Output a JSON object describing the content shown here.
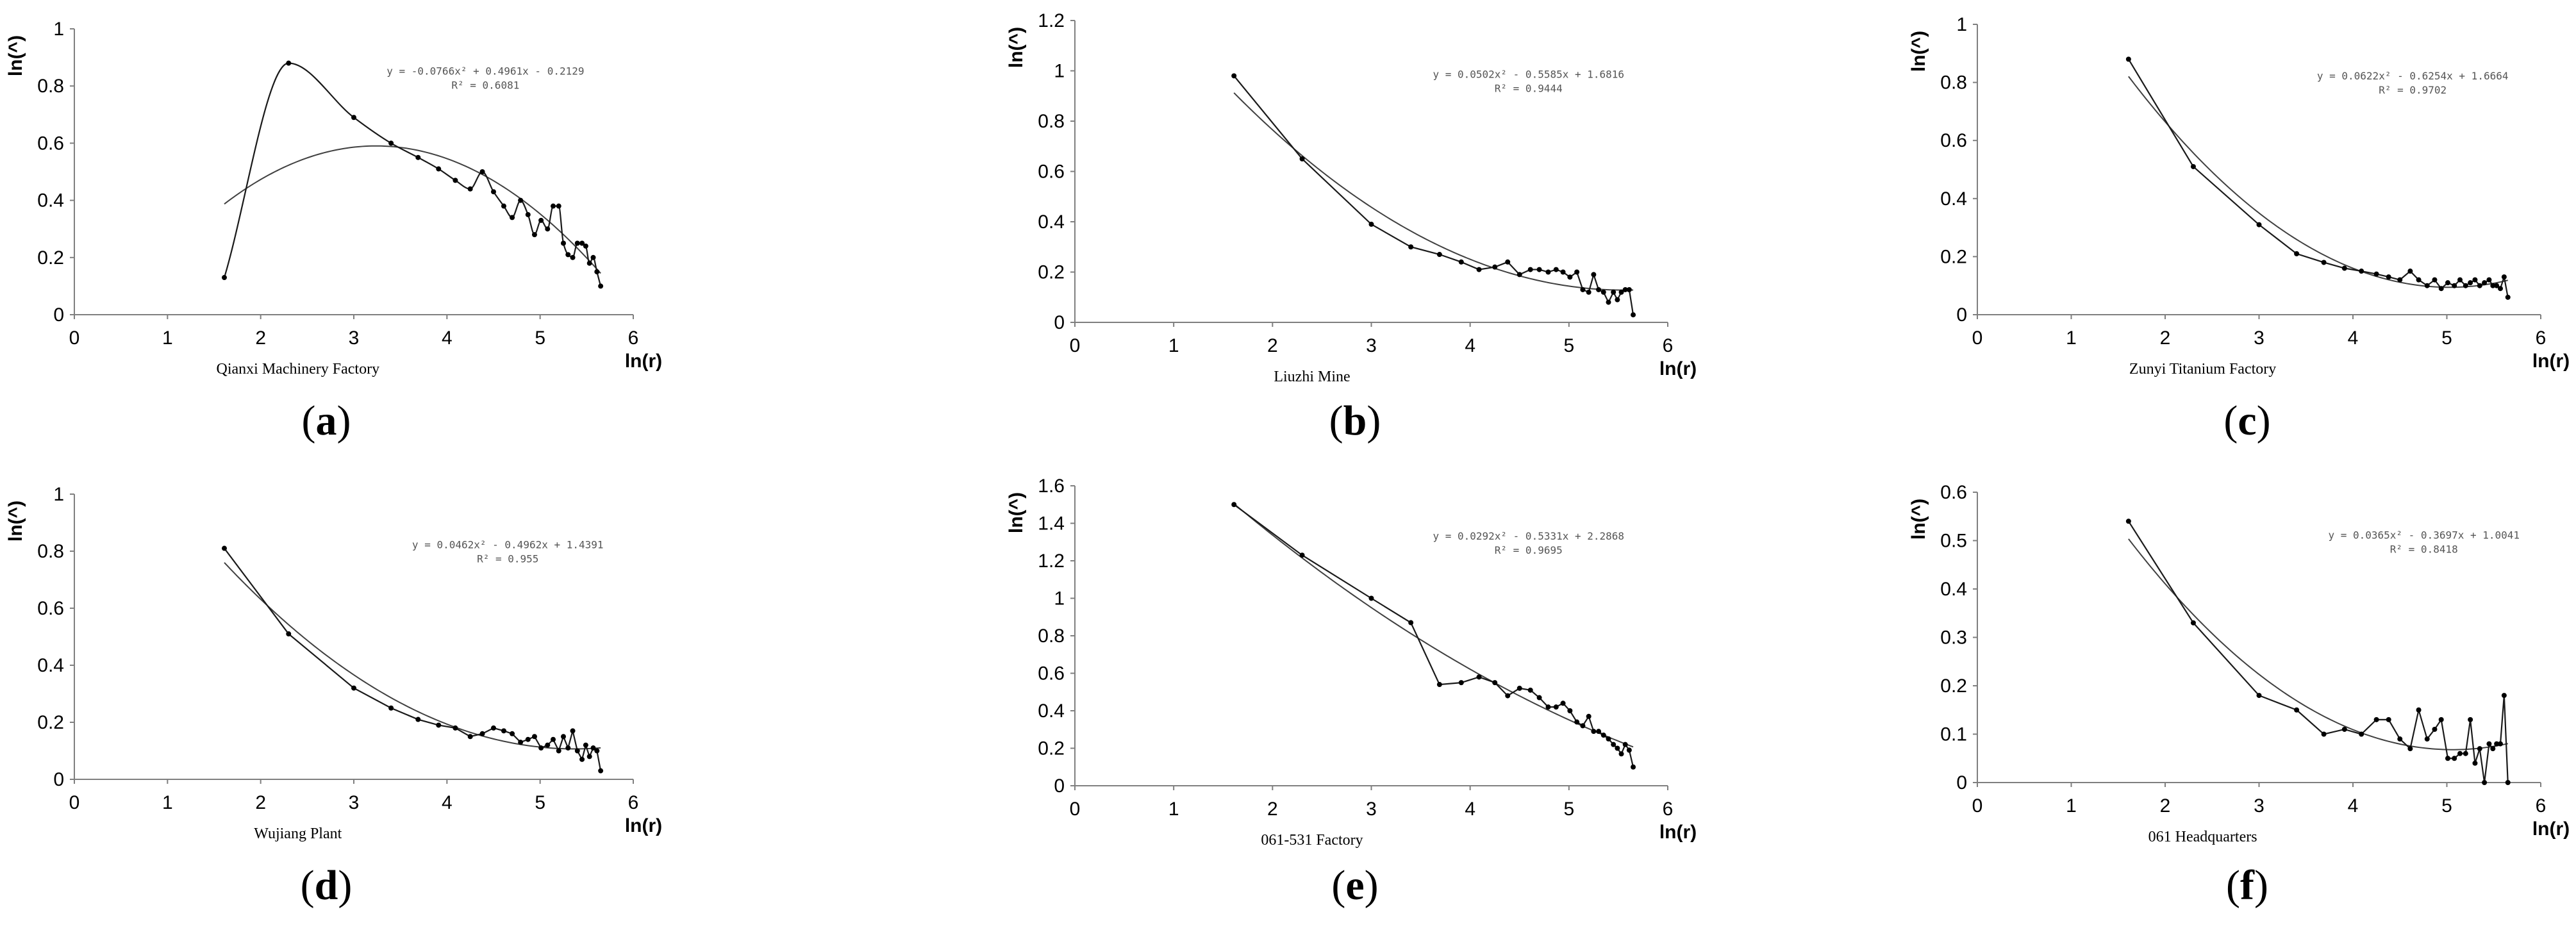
{
  "chart_data": [
    {
      "type": "line",
      "panel_label": "a",
      "xlabel": "ln(r)",
      "ylabel": "ln(^)",
      "x_caption": "Qianxi Machinery Factory",
      "equation": "y = -0.0766x² + 0.4961x - 0.2129",
      "r2": "R² = 0.6081",
      "xlim": [
        0,
        6
      ],
      "ylim": [
        0,
        1
      ],
      "xticks": [
        0,
        1,
        2,
        3,
        4,
        5,
        6
      ],
      "yticks": [
        0,
        0.2,
        0.4,
        0.6,
        0.8,
        1
      ],
      "ytick_labels": [
        "0",
        "0.2",
        "0.4",
        "0.6",
        "0.8",
        "1"
      ],
      "grid": false,
      "fit": {
        "a": -0.0766,
        "b": 0.4961,
        "c": -0.2129
      },
      "smooth": true,
      "series": [
        {
          "x": [
            1.61,
            2.3,
            3.0,
            3.4,
            3.69,
            3.91,
            4.09,
            4.25,
            4.38,
            4.5,
            4.61,
            4.7,
            4.79,
            4.87,
            4.94,
            5.01,
            5.08,
            5.14,
            5.2,
            5.25,
            5.3,
            5.35,
            5.4,
            5.45,
            5.49,
            5.53,
            5.57,
            5.61,
            5.65
          ],
          "y": [
            0.13,
            0.88,
            0.69,
            0.6,
            0.55,
            0.51,
            0.47,
            0.44,
            0.5,
            0.43,
            0.38,
            0.34,
            0.4,
            0.35,
            0.28,
            0.33,
            0.3,
            0.38,
            0.38,
            0.25,
            0.21,
            0.2,
            0.25,
            0.25,
            0.24,
            0.18,
            0.2,
            0.15,
            0.1
          ]
        }
      ]
    },
    {
      "type": "line",
      "panel_label": "b",
      "xlabel": "ln(r)",
      "ylabel": "ln(^)",
      "x_caption": "Liuzhi Mine",
      "equation": "y = 0.0502x² - 0.5585x + 1.6816",
      "r2": "R² = 0.9444",
      "xlim": [
        0,
        6
      ],
      "ylim": [
        0,
        1.2
      ],
      "xticks": [
        0,
        1,
        2,
        3,
        4,
        5,
        6
      ],
      "yticks": [
        0,
        0.2,
        0.4,
        0.6,
        0.8,
        1,
        1.2
      ],
      "ytick_labels": [
        "0",
        "0.2",
        "0.4",
        "0.6",
        "0.8",
        "1",
        "1.2"
      ],
      "grid": false,
      "fit": {
        "a": 0.0502,
        "b": -0.5585,
        "c": 1.6816
      },
      "smooth": false,
      "series": [
        {
          "x": [
            1.61,
            2.3,
            3.0,
            3.4,
            3.69,
            3.91,
            4.09,
            4.25,
            4.38,
            4.5,
            4.61,
            4.7,
            4.79,
            4.87,
            4.94,
            5.01,
            5.08,
            5.14,
            5.2,
            5.25,
            5.3,
            5.35,
            5.4,
            5.45,
            5.49,
            5.53,
            5.57,
            5.61,
            5.65
          ],
          "y": [
            0.98,
            0.65,
            0.39,
            0.3,
            0.27,
            0.24,
            0.21,
            0.22,
            0.24,
            0.19,
            0.21,
            0.21,
            0.2,
            0.21,
            0.2,
            0.18,
            0.2,
            0.13,
            0.12,
            0.19,
            0.13,
            0.12,
            0.08,
            0.12,
            0.09,
            0.12,
            0.13,
            0.13,
            0.03
          ]
        }
      ]
    },
    {
      "type": "line",
      "panel_label": "c",
      "xlabel": "ln(r)",
      "ylabel": "ln(^)",
      "x_caption": "Zunyi Titanium Factory",
      "equation": "y = 0.0622x² - 0.6254x + 1.6664",
      "r2": "R² = 0.9702",
      "xlim": [
        0,
        6
      ],
      "ylim": [
        0,
        1
      ],
      "xticks": [
        0,
        1,
        2,
        3,
        4,
        5,
        6
      ],
      "yticks": [
        0,
        0.2,
        0.4,
        0.6,
        0.8,
        1
      ],
      "ytick_labels": [
        "0",
        "0.2",
        "0.4",
        "0.6",
        "0.8",
        "1"
      ],
      "grid": false,
      "fit": {
        "a": 0.0622,
        "b": -0.6254,
        "c": 1.6664
      },
      "smooth": false,
      "series": [
        {
          "x": [
            1.61,
            2.3,
            3.0,
            3.4,
            3.69,
            3.91,
            4.09,
            4.25,
            4.38,
            4.5,
            4.61,
            4.7,
            4.79,
            4.87,
            4.94,
            5.01,
            5.08,
            5.14,
            5.2,
            5.25,
            5.3,
            5.35,
            5.4,
            5.45,
            5.49,
            5.53,
            5.57,
            5.61,
            5.65
          ],
          "y": [
            0.88,
            0.51,
            0.31,
            0.21,
            0.18,
            0.16,
            0.15,
            0.14,
            0.13,
            0.12,
            0.15,
            0.12,
            0.1,
            0.12,
            0.09,
            0.11,
            0.1,
            0.12,
            0.1,
            0.11,
            0.12,
            0.1,
            0.11,
            0.12,
            0.1,
            0.1,
            0.09,
            0.13,
            0.06
          ]
        }
      ]
    },
    {
      "type": "line",
      "panel_label": "d",
      "xlabel": "ln(r)",
      "ylabel": "ln(^)",
      "x_caption": "Wujiang Plant",
      "equation": "y = 0.0462x² - 0.4962x + 1.4391",
      "r2": "R² = 0.955",
      "xlim": [
        0,
        6
      ],
      "ylim": [
        0,
        1
      ],
      "xticks": [
        0,
        1,
        2,
        3,
        4,
        5,
        6
      ],
      "yticks": [
        0,
        0.2,
        0.4,
        0.6,
        0.8,
        1
      ],
      "ytick_labels": [
        "0",
        "0.2",
        "0.4",
        "0.6",
        "0.8",
        "1"
      ],
      "grid": false,
      "fit": {
        "a": 0.0462,
        "b": -0.4962,
        "c": 1.4391
      },
      "smooth": false,
      "series": [
        {
          "x": [
            1.61,
            2.3,
            3.0,
            3.4,
            3.69,
            3.91,
            4.09,
            4.25,
            4.38,
            4.5,
            4.61,
            4.7,
            4.79,
            4.87,
            4.94,
            5.01,
            5.08,
            5.14,
            5.2,
            5.25,
            5.3,
            5.35,
            5.4,
            5.45,
            5.49,
            5.53,
            5.57,
            5.61,
            5.65
          ],
          "y": [
            0.81,
            0.51,
            0.32,
            0.25,
            0.21,
            0.19,
            0.18,
            0.15,
            0.16,
            0.18,
            0.17,
            0.16,
            0.13,
            0.14,
            0.15,
            0.11,
            0.12,
            0.14,
            0.1,
            0.15,
            0.11,
            0.17,
            0.1,
            0.07,
            0.12,
            0.08,
            0.11,
            0.1,
            0.03
          ]
        }
      ]
    },
    {
      "type": "line",
      "panel_label": "e",
      "xlabel": "ln(r)",
      "ylabel": "ln(^)",
      "x_caption": "061-531 Factory",
      "equation": "y = 0.0292x² - 0.5331x + 2.2868",
      "r2": "R² = 0.9695",
      "xlim": [
        0,
        6
      ],
      "ylim": [
        0,
        1.6
      ],
      "xticks": [
        0,
        1,
        2,
        3,
        4,
        5,
        6
      ],
      "yticks": [
        0,
        0.2,
        0.4,
        0.6,
        0.8,
        1,
        1.2,
        1.4,
        1.6
      ],
      "ytick_labels": [
        "0",
        "0.2",
        "0.4",
        "0.6",
        "0.8",
        "1",
        "1.2",
        "1.4",
        "1.6"
      ],
      "grid": false,
      "fit": {
        "a": 0.0292,
        "b": -0.5331,
        "c": 2.2868
      },
      "smooth": false,
      "series": [
        {
          "x": [
            1.61,
            2.3,
            3.0,
            3.4,
            3.69,
            3.91,
            4.09,
            4.25,
            4.38,
            4.5,
            4.61,
            4.7,
            4.79,
            4.87,
            4.94,
            5.01,
            5.08,
            5.14,
            5.2,
            5.25,
            5.3,
            5.35,
            5.4,
            5.45,
            5.49,
            5.53,
            5.57,
            5.61,
            5.65
          ],
          "y": [
            1.5,
            1.23,
            1.0,
            0.87,
            0.54,
            0.55,
            0.58,
            0.55,
            0.48,
            0.52,
            0.51,
            0.47,
            0.42,
            0.42,
            0.44,
            0.4,
            0.34,
            0.32,
            0.37,
            0.29,
            0.29,
            0.27,
            0.25,
            0.22,
            0.2,
            0.17,
            0.22,
            0.19,
            0.1
          ]
        }
      ]
    },
    {
      "type": "line",
      "panel_label": "f",
      "xlabel": "ln(r)",
      "ylabel": "ln(^)",
      "x_caption": "061 Headquarters",
      "equation": "y = 0.0365x² - 0.3697x + 1.0041",
      "r2": "R² = 0.8418",
      "xlim": [
        0,
        6
      ],
      "ylim": [
        0,
        0.6
      ],
      "xticks": [
        0,
        1,
        2,
        3,
        4,
        5,
        6
      ],
      "yticks": [
        0,
        0.1,
        0.2,
        0.3,
        0.4,
        0.5,
        0.6
      ],
      "ytick_labels": [
        "0",
        "0.1",
        "0.2",
        "0.3",
        "0.4",
        "0.5",
        "0.6"
      ],
      "grid": false,
      "fit": {
        "a": 0.0365,
        "b": -0.3697,
        "c": 1.0041
      },
      "smooth": false,
      "series": [
        {
          "x": [
            1.61,
            2.3,
            3.0,
            3.4,
            3.69,
            3.91,
            4.09,
            4.25,
            4.38,
            4.5,
            4.61,
            4.7,
            4.79,
            4.87,
            4.94,
            5.01,
            5.08,
            5.14,
            5.2,
            5.25,
            5.3,
            5.35,
            5.4,
            5.45,
            5.49,
            5.53,
            5.57,
            5.61,
            5.65
          ],
          "y": [
            0.54,
            0.33,
            0.18,
            0.15,
            0.1,
            0.11,
            0.1,
            0.13,
            0.13,
            0.09,
            0.07,
            0.15,
            0.09,
            0.11,
            0.13,
            0.05,
            0.05,
            0.06,
            0.06,
            0.13,
            0.04,
            0.07,
            0.0,
            0.08,
            0.07,
            0.08,
            0.08,
            0.18,
            0.0
          ]
        }
      ]
    }
  ]
}
